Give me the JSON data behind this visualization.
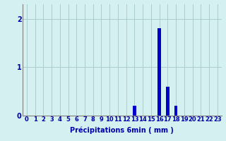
{
  "hours": [
    0,
    1,
    2,
    3,
    4,
    5,
    6,
    7,
    8,
    9,
    10,
    11,
    12,
    13,
    14,
    15,
    16,
    17,
    18,
    19,
    20,
    21,
    22,
    23
  ],
  "values": [
    0,
    0,
    0,
    0,
    0,
    0,
    0,
    0,
    0,
    0,
    0,
    0,
    0,
    0.2,
    0,
    0,
    1.8,
    0.6,
    0.2,
    0,
    0,
    0,
    0,
    0
  ],
  "bar_color": "#0000cc",
  "background_color": "#d4f0f0",
  "grid_color": "#aacccc",
  "axis_color": "#808080",
  "text_color": "#0000aa",
  "xlabel": "Précipitations 6min ( mm )",
  "ylim": [
    0,
    2.3
  ],
  "yticks": [
    0,
    1,
    2
  ],
  "xlim": [
    -0.5,
    23.5
  ],
  "xlabel_fontsize": 7,
  "tick_fontsize": 6,
  "bar_width": 0.4
}
